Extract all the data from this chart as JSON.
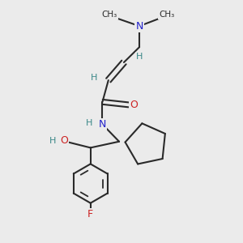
{
  "bg_color": "#ebebeb",
  "bond_color": "#2a2a2a",
  "N_color": "#2222cc",
  "O_color": "#cc2222",
  "F_color": "#cc2222",
  "H_color": "#3a8888",
  "lw": 1.5,
  "xlim": [
    0.0,
    1.0
  ],
  "ylim": [
    0.0,
    1.0
  ]
}
